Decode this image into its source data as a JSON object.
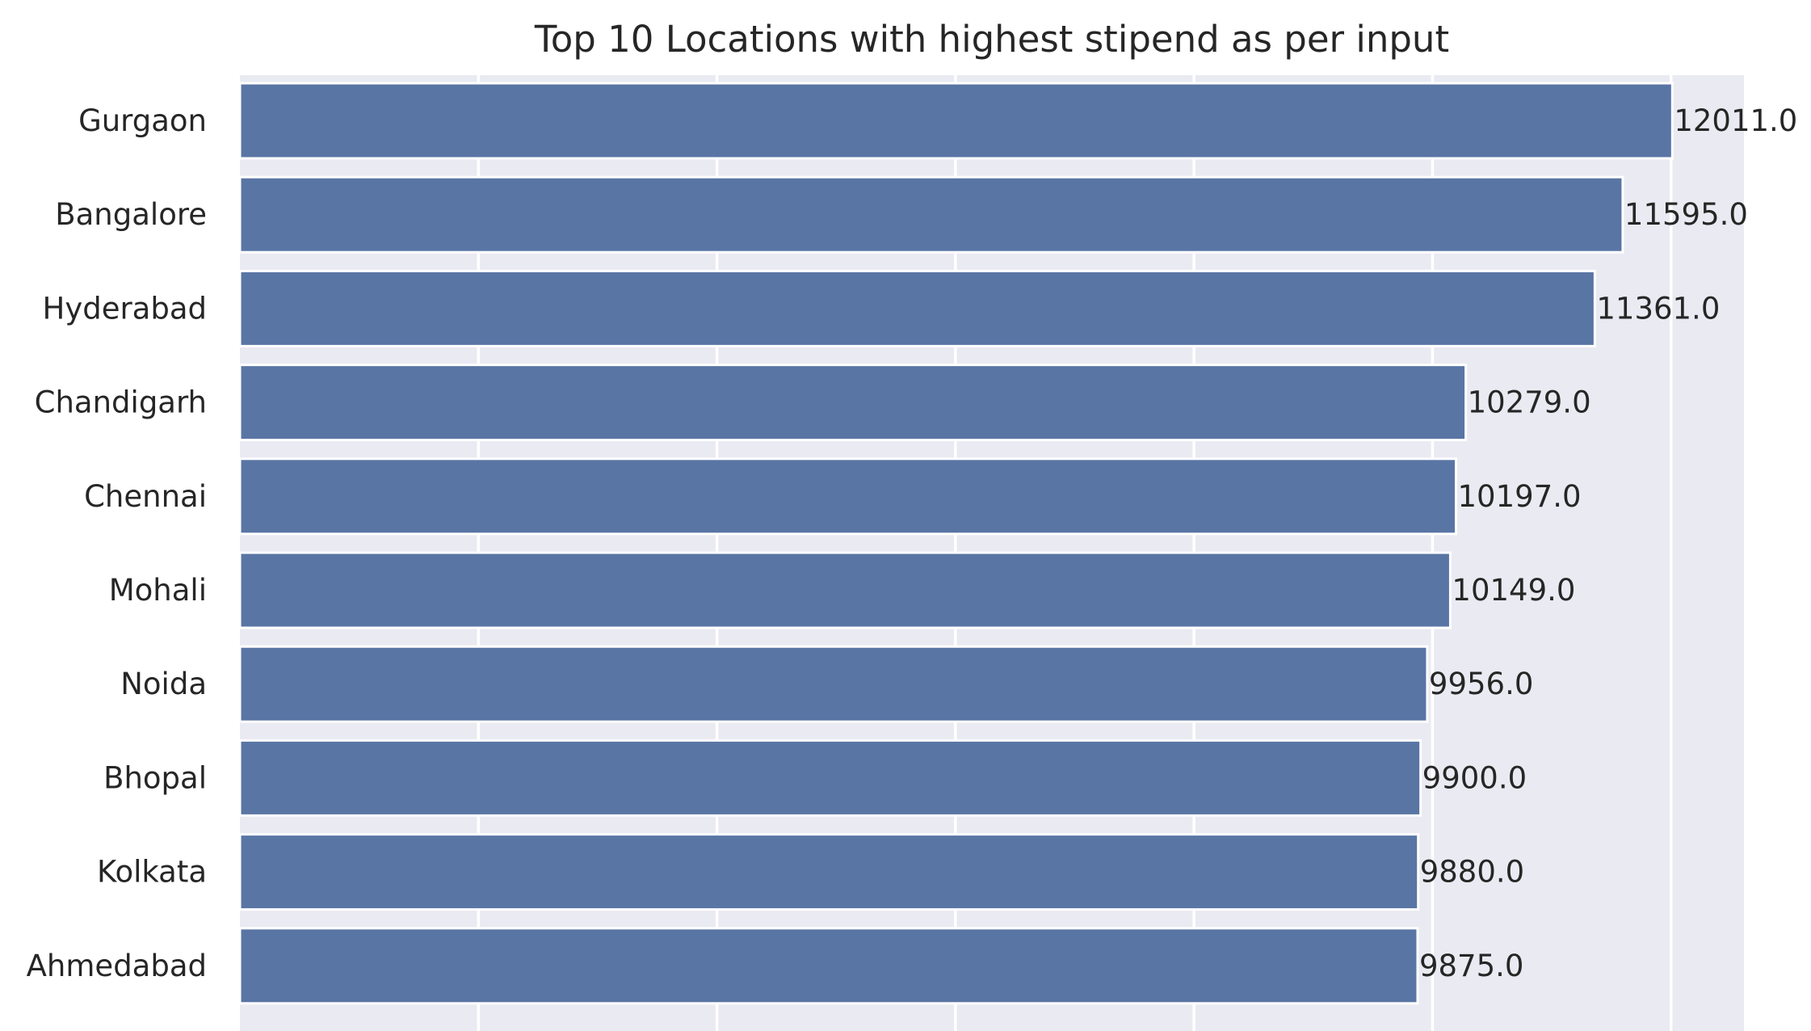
{
  "chart_data": {
    "type": "bar",
    "orientation": "horizontal",
    "title": "Top 10 Locations with highest stipend as per input",
    "xlabel": "",
    "ylabel": "",
    "categories": [
      "Gurgaon",
      "Bangalore",
      "Hyderabad",
      "Chandigarh",
      "Chennai",
      "Mohali",
      "Noida",
      "Bhopal",
      "Kolkata",
      "Ahmedabad"
    ],
    "values": [
      12011.0,
      11595.0,
      11361.0,
      10279.0,
      10197.0,
      10149.0,
      9956.0,
      9900.0,
      9880.0,
      9875.0
    ],
    "value_labels": [
      "12011.0",
      "11595.0",
      "11361.0",
      "10279.0",
      "10197.0",
      "10149.0",
      "9956.0",
      "9900.0",
      "9880.0",
      "9875.0"
    ],
    "xlim": [
      0,
      12611.55
    ],
    "x_gridlines": [
      2000,
      4000,
      6000,
      8000,
      10000,
      12000
    ],
    "grid": true,
    "legend": "none",
    "colors": {
      "bar": "#5975a4",
      "background": "#eaeaf2",
      "grid": "#ffffff",
      "text": "#262626"
    }
  }
}
